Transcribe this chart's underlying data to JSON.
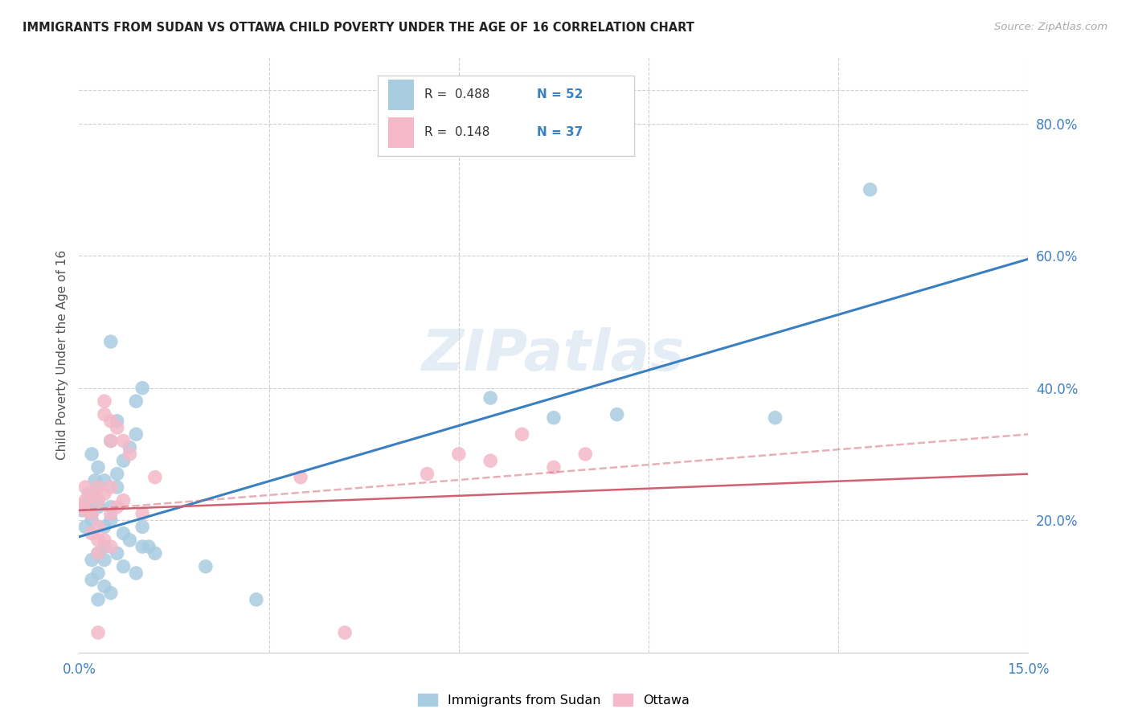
{
  "title": "IMMIGRANTS FROM SUDAN VS OTTAWA CHILD POVERTY UNDER THE AGE OF 16 CORRELATION CHART",
  "source": "Source: ZipAtlas.com",
  "ylabel": "Child Poverty Under the Age of 16",
  "xlim": [
    0,
    0.15
  ],
  "ylim": [
    0,
    0.9
  ],
  "right_yticks": [
    0.2,
    0.4,
    0.6,
    0.8
  ],
  "right_yticklabels": [
    "20.0%",
    "40.0%",
    "60.0%",
    "80.0%"
  ],
  "xticks": [
    0.0,
    0.03,
    0.06,
    0.09,
    0.12,
    0.15
  ],
  "legend_blue_r": "R =  0.488",
  "legend_blue_n": "N = 52",
  "legend_pink_r": "R =  0.148",
  "legend_pink_n": "N = 37",
  "blue_scatter": [
    [
      0.0005,
      0.215
    ],
    [
      0.001,
      0.225
    ],
    [
      0.001,
      0.19
    ],
    [
      0.0015,
      0.24
    ],
    [
      0.0015,
      0.22
    ],
    [
      0.002,
      0.21
    ],
    [
      0.002,
      0.2
    ],
    [
      0.002,
      0.3
    ],
    [
      0.002,
      0.14
    ],
    [
      0.002,
      0.11
    ],
    [
      0.0025,
      0.26
    ],
    [
      0.003,
      0.23
    ],
    [
      0.003,
      0.25
    ],
    [
      0.003,
      0.22
    ],
    [
      0.003,
      0.28
    ],
    [
      0.003,
      0.15
    ],
    [
      0.003,
      0.12
    ],
    [
      0.003,
      0.08
    ],
    [
      0.004,
      0.19
    ],
    [
      0.004,
      0.26
    ],
    [
      0.004,
      0.16
    ],
    [
      0.004,
      0.14
    ],
    [
      0.004,
      0.1
    ],
    [
      0.005,
      0.22
    ],
    [
      0.005,
      0.2
    ],
    [
      0.005,
      0.32
    ],
    [
      0.005,
      0.09
    ],
    [
      0.005,
      0.47
    ],
    [
      0.006,
      0.27
    ],
    [
      0.006,
      0.25
    ],
    [
      0.006,
      0.35
    ],
    [
      0.006,
      0.15
    ],
    [
      0.007,
      0.29
    ],
    [
      0.007,
      0.18
    ],
    [
      0.007,
      0.13
    ],
    [
      0.008,
      0.31
    ],
    [
      0.008,
      0.17
    ],
    [
      0.009,
      0.33
    ],
    [
      0.009,
      0.38
    ],
    [
      0.009,
      0.12
    ],
    [
      0.01,
      0.4
    ],
    [
      0.01,
      0.19
    ],
    [
      0.01,
      0.16
    ],
    [
      0.011,
      0.16
    ],
    [
      0.012,
      0.15
    ],
    [
      0.02,
      0.13
    ],
    [
      0.028,
      0.08
    ],
    [
      0.065,
      0.385
    ],
    [
      0.075,
      0.355
    ],
    [
      0.085,
      0.36
    ],
    [
      0.11,
      0.355
    ],
    [
      0.125,
      0.7
    ]
  ],
  "pink_scatter": [
    [
      0.0005,
      0.22
    ],
    [
      0.001,
      0.215
    ],
    [
      0.001,
      0.25
    ],
    [
      0.001,
      0.23
    ],
    [
      0.002,
      0.21
    ],
    [
      0.002,
      0.24
    ],
    [
      0.002,
      0.18
    ],
    [
      0.003,
      0.23
    ],
    [
      0.003,
      0.19
    ],
    [
      0.003,
      0.17
    ],
    [
      0.003,
      0.15
    ],
    [
      0.003,
      0.25
    ],
    [
      0.004,
      0.38
    ],
    [
      0.004,
      0.36
    ],
    [
      0.004,
      0.17
    ],
    [
      0.004,
      0.24
    ],
    [
      0.005,
      0.35
    ],
    [
      0.005,
      0.32
    ],
    [
      0.005,
      0.16
    ],
    [
      0.005,
      0.21
    ],
    [
      0.005,
      0.25
    ],
    [
      0.006,
      0.34
    ],
    [
      0.006,
      0.22
    ],
    [
      0.007,
      0.32
    ],
    [
      0.007,
      0.23
    ],
    [
      0.008,
      0.3
    ],
    [
      0.01,
      0.21
    ],
    [
      0.035,
      0.265
    ],
    [
      0.042,
      0.03
    ],
    [
      0.055,
      0.27
    ],
    [
      0.06,
      0.3
    ],
    [
      0.065,
      0.29
    ],
    [
      0.07,
      0.33
    ],
    [
      0.075,
      0.28
    ],
    [
      0.08,
      0.3
    ],
    [
      0.003,
      0.03
    ],
    [
      0.012,
      0.265
    ]
  ],
  "blue_line": {
    "x0": 0.0,
    "x1": 0.15,
    "y0": 0.175,
    "y1": 0.595
  },
  "pink_line": {
    "x0": 0.0,
    "x1": 0.15,
    "y0": 0.215,
    "y1": 0.27
  },
  "pink_line_ext": {
    "x0": 0.0,
    "x1": 0.15,
    "y0": 0.215,
    "y1": 0.33
  },
  "blue_scatter_color": "#a8cce0",
  "pink_scatter_color": "#f4b8c8",
  "blue_line_color": "#3a80c0",
  "pink_line_color": "#d06070",
  "watermark": "ZIPatlas",
  "background_color": "#ffffff",
  "grid_color": "#d0d0d0",
  "title_color": "#222222",
  "label_color": "#555555",
  "axis_tick_color": "#4080c0",
  "legend_r_color": "#333333",
  "legend_n_color": "#3a80c0"
}
